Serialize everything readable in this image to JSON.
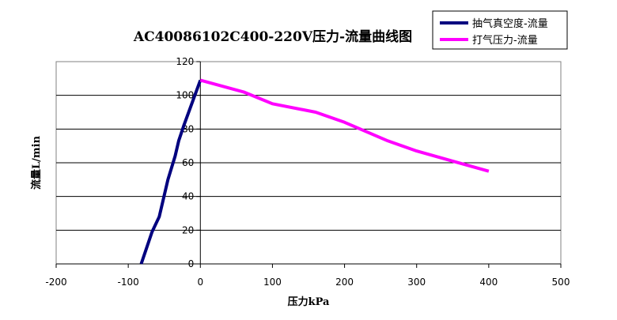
{
  "chart_data": {
    "type": "line",
    "title": "AC40086102C400-220V压力-流量曲线图",
    "xlabel": "压力kPa",
    "ylabel": "流量L/min",
    "xlim": [
      -200,
      500
    ],
    "ylim": [
      0,
      120
    ],
    "x_ticks": [
      -200,
      -100,
      0,
      100,
      200,
      300,
      400,
      500
    ],
    "y_ticks": [
      0,
      20,
      40,
      60,
      80,
      100,
      120
    ],
    "x_tick_labels": [
      "-200",
      "-100",
      "0",
      "100",
      "200",
      "300",
      "400",
      "500"
    ],
    "y_tick_labels": [
      "0",
      "20",
      "40",
      "60",
      "80",
      "100",
      "120"
    ],
    "grid": "horizontal",
    "legend_position": "top-right",
    "series": [
      {
        "name": "抽气真空度-流量",
        "color": "#00007F",
        "points": [
          [
            -82,
            0
          ],
          [
            -67,
            19
          ],
          [
            -57,
            28
          ],
          [
            -45,
            50
          ],
          [
            -35,
            64
          ],
          [
            -30,
            73
          ],
          [
            -23,
            82
          ],
          [
            0,
            109
          ]
        ]
      },
      {
        "name": "打气压力-流量",
        "color": "#FF00FF",
        "points": [
          [
            0,
            109
          ],
          [
            60,
            102
          ],
          [
            100,
            95
          ],
          [
            160,
            90
          ],
          [
            200,
            84
          ],
          [
            260,
            73
          ],
          [
            300,
            67
          ],
          [
            350,
            61
          ],
          [
            400,
            55
          ]
        ]
      }
    ]
  }
}
